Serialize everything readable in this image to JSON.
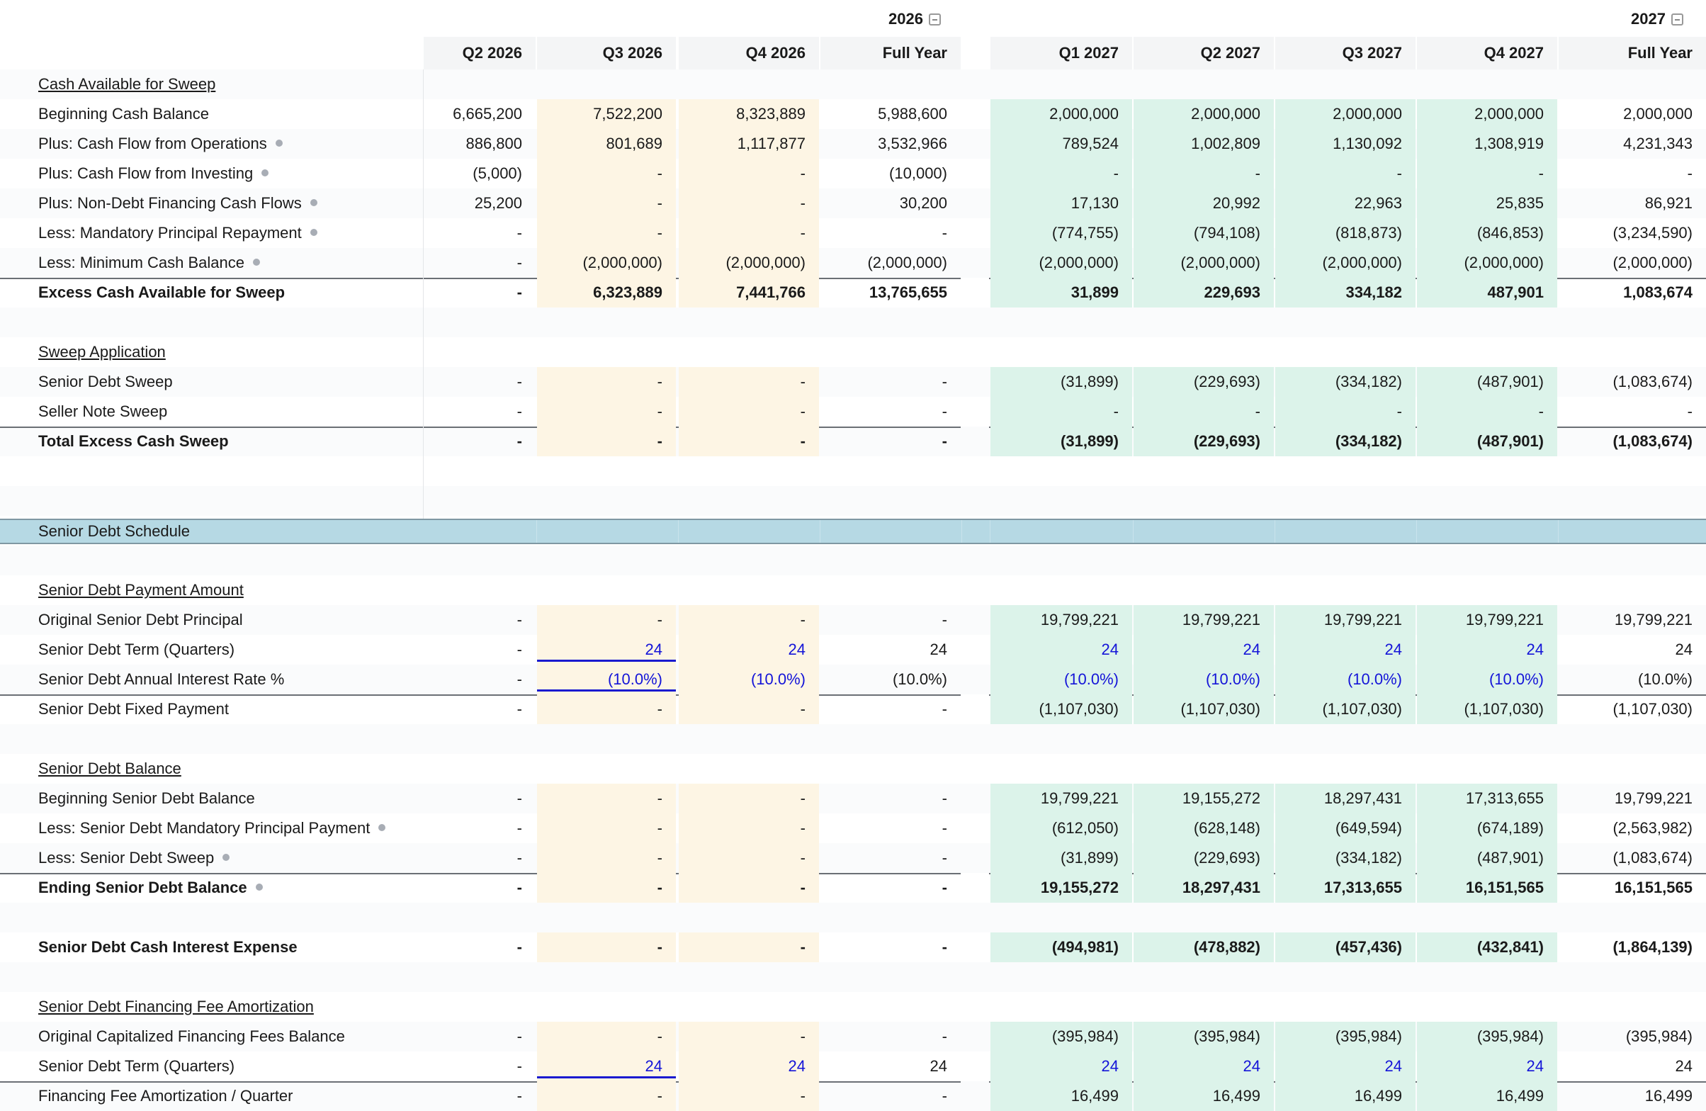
{
  "years": [
    {
      "label": "2026"
    },
    {
      "label": "2027"
    }
  ],
  "columns": [
    "Q2 2026",
    "Q3 2026",
    "Q4 2026",
    "Full Year",
    "Q1 2027",
    "Q2 2027",
    "Q3 2027",
    "Q4 2027",
    "Full Year"
  ],
  "colors": {
    "fill_2026": "#fdf5e4",
    "fill_2027": "#dcf3ea",
    "header_bg": "#f4f5f6",
    "band_bg": "#b6d9e4",
    "input_blue": "#1414d8"
  },
  "band": {
    "label": "Senior Debt Schedule"
  },
  "rows": [
    {
      "label": "Cash Available for Sweep",
      "kind": "section",
      "values": []
    },
    {
      "label": "Beginning Cash Balance",
      "values": [
        "6,665,200",
        "7,522,200",
        "8,323,889",
        "5,988,600",
        "2,000,000",
        "2,000,000",
        "2,000,000",
        "2,000,000",
        "2,000,000"
      ]
    },
    {
      "label": "Plus: Cash Flow from Operations",
      "dot": true,
      "values": [
        "886,800",
        "801,689",
        "1,117,877",
        "3,532,966",
        "789,524",
        "1,002,809",
        "1,130,092",
        "1,308,919",
        "4,231,343"
      ]
    },
    {
      "label": "Plus: Cash Flow from Investing",
      "dot": true,
      "values": [
        "(5,000)",
        "-",
        "-",
        "(10,000)",
        "-",
        "-",
        "-",
        "-",
        "-"
      ]
    },
    {
      "label": "Plus: Non-Debt Financing Cash Flows",
      "dot": true,
      "values": [
        "25,200",
        "-",
        "-",
        "30,200",
        "17,130",
        "20,992",
        "22,963",
        "25,835",
        "86,921"
      ]
    },
    {
      "label": "Less: Mandatory Principal Repayment",
      "dot": true,
      "values": [
        "-",
        "-",
        "-",
        "-",
        "(774,755)",
        "(794,108)",
        "(818,873)",
        "(846,853)",
        "(3,234,590)"
      ]
    },
    {
      "label": "Less: Minimum Cash Balance",
      "dot": true,
      "values": [
        "-",
        "(2,000,000)",
        "(2,000,000)",
        "(2,000,000)",
        "(2,000,000)",
        "(2,000,000)",
        "(2,000,000)",
        "(2,000,000)",
        "(2,000,000)"
      ]
    },
    {
      "label": "Excess Cash Available for Sweep",
      "bold": true,
      "topline": true,
      "values": [
        "-",
        "6,323,889",
        "7,441,766",
        "13,765,655",
        "31,899",
        "229,693",
        "334,182",
        "487,901",
        "1,083,674"
      ]
    },
    {
      "label": "",
      "kind": "blank",
      "values": []
    },
    {
      "label": "Sweep Application",
      "kind": "section",
      "values": []
    },
    {
      "label": "Senior Debt Sweep",
      "values": [
        "-",
        "-",
        "-",
        "-",
        "(31,899)",
        "(229,693)",
        "(334,182)",
        "(487,901)",
        "(1,083,674)"
      ]
    },
    {
      "label": "Seller Note Sweep",
      "values": [
        "-",
        "-",
        "-",
        "-",
        "-",
        "-",
        "-",
        "-",
        "-"
      ]
    },
    {
      "label": "Total Excess Cash Sweep",
      "bold": true,
      "topline": true,
      "values": [
        "-",
        "-",
        "-",
        "-",
        "(31,899)",
        "(229,693)",
        "(334,182)",
        "(487,901)",
        "(1,083,674)"
      ]
    },
    {
      "label": "",
      "kind": "blank",
      "values": []
    },
    {
      "label": "",
      "kind": "blank",
      "values": []
    },
    {
      "label": "",
      "kind": "band-slot",
      "values": []
    },
    {
      "label": "",
      "kind": "blank",
      "values": []
    },
    {
      "label": "Senior Debt Payment Amount",
      "kind": "section",
      "values": []
    },
    {
      "label": "Original Senior Debt Principal",
      "values": [
        "-",
        "-",
        "-",
        "-",
        "19,799,221",
        "19,799,221",
        "19,799,221",
        "19,799,221",
        "19,799,221"
      ]
    },
    {
      "label": "Senior Debt Term (Quarters)",
      "blue": true,
      "underline": true,
      "values": [
        "-",
        "24",
        "24",
        "24",
        "24",
        "24",
        "24",
        "24",
        "24"
      ]
    },
    {
      "label": "Senior Debt Annual Interest Rate %",
      "blue": true,
      "underline": true,
      "values": [
        "-",
        "(10.0%)",
        "(10.0%)",
        "(10.0%)",
        "(10.0%)",
        "(10.0%)",
        "(10.0%)",
        "(10.0%)",
        "(10.0%)"
      ]
    },
    {
      "label": "Senior Debt Fixed Payment",
      "topline": true,
      "values": [
        "-",
        "-",
        "-",
        "-",
        "(1,107,030)",
        "(1,107,030)",
        "(1,107,030)",
        "(1,107,030)",
        "(1,107,030)"
      ]
    },
    {
      "label": "",
      "kind": "blank",
      "values": []
    },
    {
      "label": "Senior Debt Balance",
      "kind": "section",
      "values": []
    },
    {
      "label": "Beginning Senior Debt Balance",
      "values": [
        "-",
        "-",
        "-",
        "-",
        "19,799,221",
        "19,155,272",
        "18,297,431",
        "17,313,655",
        "19,799,221"
      ]
    },
    {
      "label": "Less: Senior Debt Mandatory Principal Payment",
      "dot": true,
      "values": [
        "-",
        "-",
        "-",
        "-",
        "(612,050)",
        "(628,148)",
        "(649,594)",
        "(674,189)",
        "(2,563,982)"
      ]
    },
    {
      "label": "Less: Senior Debt Sweep",
      "dot": true,
      "values": [
        "-",
        "-",
        "-",
        "-",
        "(31,899)",
        "(229,693)",
        "(334,182)",
        "(487,901)",
        "(1,083,674)"
      ]
    },
    {
      "label": "Ending Senior Debt Balance",
      "bold": true,
      "dot": true,
      "topline": true,
      "values": [
        "-",
        "-",
        "-",
        "-",
        "19,155,272",
        "18,297,431",
        "17,313,655",
        "16,151,565",
        "16,151,565"
      ]
    },
    {
      "label": "",
      "kind": "blank",
      "values": []
    },
    {
      "label": "Senior Debt Cash Interest Expense",
      "bold": true,
      "values": [
        "-",
        "-",
        "-",
        "-",
        "(494,981)",
        "(478,882)",
        "(457,436)",
        "(432,841)",
        "(1,864,139)"
      ]
    },
    {
      "label": "",
      "kind": "blank",
      "values": []
    },
    {
      "label": "Senior Debt Financing Fee Amortization",
      "kind": "section",
      "values": []
    },
    {
      "label": "Original Capitalized Financing Fees Balance",
      "values": [
        "-",
        "-",
        "-",
        "-",
        "(395,984)",
        "(395,984)",
        "(395,984)",
        "(395,984)",
        "(395,984)"
      ]
    },
    {
      "label": "Senior Debt Term (Quarters)",
      "blue": true,
      "underline": true,
      "values": [
        "-",
        "24",
        "24",
        "24",
        "24",
        "24",
        "24",
        "24",
        "24"
      ]
    },
    {
      "label": "Financing Fee Amortization / Quarter",
      "topline": true,
      "values": [
        "-",
        "-",
        "-",
        "-",
        "16,499",
        "16,499",
        "16,499",
        "16,499",
        "16,499"
      ]
    }
  ]
}
